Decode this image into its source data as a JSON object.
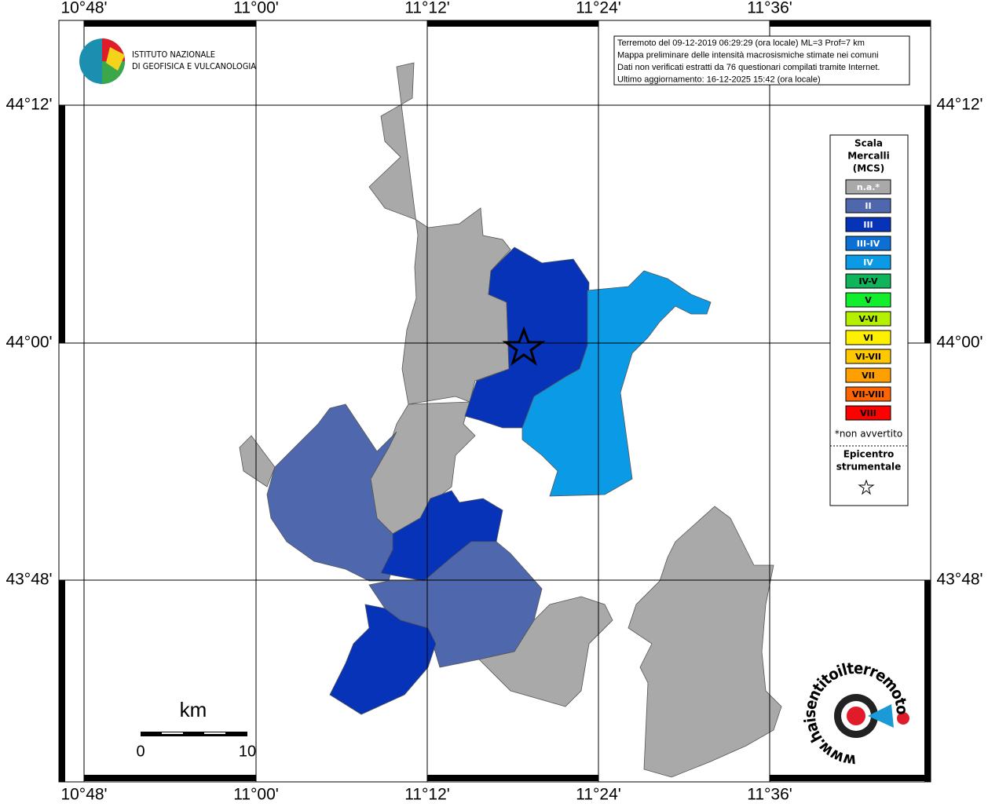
{
  "map": {
    "lon_labels": [
      "10°48'",
      "11°00'",
      "11°12'",
      "11°24'",
      "11°36'"
    ],
    "lat_labels": [
      "44°12'",
      "44°00'",
      "43°48'"
    ],
    "institute": {
      "line1": "ISTITUTO NAZIONALE",
      "line2": "DI GEOFISICA E VULCANOLOGIA"
    },
    "info": [
      "Terremoto del 09-12-2019 06:29:29 (ora locale) ML=3 Prof=7 km",
      "Mappa preliminare delle intensità macrosismiche stimate nei comuni",
      "Dati non verificati estratti da 76 questionari compilati tramite Internet.",
      "Ultimo aggiornamento: 16-12-2025 15:42 (ora locale)"
    ],
    "legend": {
      "title": [
        "Scala",
        "Mercalli",
        "(MCS)"
      ],
      "items": [
        {
          "label": "n.a.*",
          "color": "#a9a9a9"
        },
        {
          "label": "II",
          "color": "#4f68ad"
        },
        {
          "label": "III",
          "color": "#0633b8"
        },
        {
          "label": "III-IV",
          "color": "#0b6fd3"
        },
        {
          "label": "IV",
          "color": "#0a9ae6"
        },
        {
          "label": "IV-V",
          "color": "#10b45a"
        },
        {
          "label": "V",
          "color": "#12ee2c"
        },
        {
          "label": "V-VI",
          "color": "#b5f000"
        },
        {
          "label": "VI",
          "color": "#fff000"
        },
        {
          "label": "VI-VII",
          "color": "#ffc800"
        },
        {
          "label": "VII",
          "color": "#ffa000"
        },
        {
          "label": "VII-VIII",
          "color": "#ff6400"
        },
        {
          "label": "VIII",
          "color": "#ff0000"
        }
      ],
      "note": "*non avvertito",
      "epicenter": [
        "Epicentro",
        "strumentale"
      ]
    },
    "scale": {
      "unit": "km",
      "start": "0",
      "end": "10"
    },
    "site": "www.haisentitoilterremoto.it"
  }
}
